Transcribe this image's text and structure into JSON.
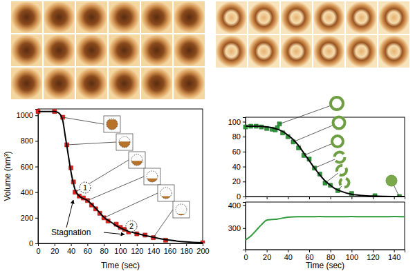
{
  "chart_data": [
    {
      "type": "line",
      "y_label": "Volume (nm³)",
      "x_label": "Time (sec)",
      "xlim": [
        0,
        200
      ],
      "xticks": [
        0,
        20,
        40,
        60,
        80,
        100,
        120,
        140,
        160,
        180,
        200
      ],
      "ylim": [
        0,
        1050
      ],
      "yticks": [
        0,
        200,
        400,
        600,
        800,
        1000
      ],
      "annotations": [
        "1",
        "2",
        "Stagnation"
      ],
      "series": [
        {
          "type": "scatter",
          "marker": "square",
          "color": "#e8201c",
          "x": [
            0,
            20,
            30,
            35,
            40,
            43,
            45,
            50,
            55,
            60,
            65,
            70,
            75,
            80,
            85,
            95,
            100,
            105,
            110,
            120,
            130,
            140,
            155,
            200
          ],
          "values": [
            1030,
            1030,
            985,
            770,
            590,
            480,
            400,
            370,
            355,
            335,
            300,
            270,
            235,
            200,
            175,
            150,
            125,
            110,
            90,
            75,
            65,
            45,
            25,
            5
          ]
        },
        {
          "type": "line",
          "color": "#000000",
          "x": [
            0,
            20,
            25,
            30,
            33,
            36,
            40,
            45,
            50,
            60,
            70,
            80,
            90,
            100,
            110,
            120,
            130,
            140,
            150,
            160,
            180,
            200
          ],
          "values": [
            1030,
            1030,
            1020,
            960,
            840,
            720,
            560,
            420,
            370,
            335,
            275,
            205,
            160,
            120,
            95,
            78,
            62,
            48,
            35,
            25,
            12,
            5
          ]
        }
      ]
    },
    {
      "type": "line",
      "tick_labels": "y",
      "xlim": [
        0,
        150
      ],
      "xticks": [
        0,
        20,
        40,
        60,
        80,
        100,
        120,
        140
      ],
      "ylim": [
        0,
        106
      ],
      "yticks": [
        0,
        20,
        40,
        60,
        80,
        100
      ],
      "series": [
        {
          "type": "scatter",
          "marker": "square",
          "color": "#2e9a3a",
          "x": [
            0,
            5,
            10,
            15,
            20,
            25,
            28,
            30,
            32,
            35,
            40,
            45,
            50,
            55,
            60,
            65,
            70,
            75,
            80,
            87,
            100,
            122,
            145
          ],
          "values": [
            93,
            94,
            94,
            93,
            91,
            90,
            89,
            92,
            97,
            85,
            80,
            73,
            65,
            55,
            50,
            38,
            30,
            18,
            15,
            8,
            4,
            1,
            0
          ]
        },
        {
          "type": "line",
          "color": "#000000",
          "x": [
            0,
            10,
            20,
            25,
            30,
            35,
            40,
            45,
            50,
            55,
            60,
            65,
            70,
            75,
            80,
            85,
            90,
            100,
            110,
            120,
            130,
            150
          ],
          "values": [
            94,
            94,
            93,
            92,
            90,
            87,
            82,
            76,
            68,
            58,
            48,
            38,
            29,
            21,
            15,
            10,
            7,
            3,
            1.5,
            0.7,
            0.3,
            0
          ]
        }
      ]
    },
    {
      "type": "line",
      "x_label": "Time (sec)",
      "xlim": [
        0,
        150
      ],
      "xticks": [
        0,
        20,
        40,
        60,
        80,
        100,
        120,
        140
      ],
      "ylim": [
        205,
        415
      ],
      "yticks": [
        300,
        400
      ],
      "series": [
        {
          "type": "line",
          "color": "#2e9a3a",
          "x": [
            0,
            5,
            10,
            15,
            20,
            25,
            30,
            40,
            50,
            60,
            70,
            80,
            90,
            100,
            110,
            120,
            130,
            140,
            150
          ],
          "values": [
            248,
            265,
            290,
            315,
            335,
            338,
            340,
            348,
            350,
            350,
            351,
            350,
            350,
            351,
            350,
            350,
            350,
            351,
            350
          ]
        }
      ]
    }
  ]
}
